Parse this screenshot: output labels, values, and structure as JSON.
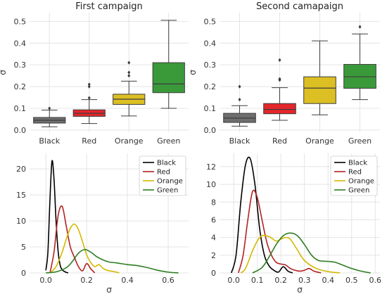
{
  "chart_data": [
    {
      "type": "box",
      "title": "First campaign",
      "ylabel": "σ",
      "xlabel": "",
      "ylim": [
        -0.01,
        0.54
      ],
      "yticks": [
        0.0,
        0.1,
        0.2,
        0.3,
        0.4,
        0.5
      ],
      "ytick_labels": [
        "0.0",
        "0.1",
        "0.2",
        "0.3",
        "0.4",
        "0.5"
      ],
      "grid": true,
      "categories": [
        "Black",
        "Red",
        "Orange",
        "Green"
      ],
      "colors": [
        "#6e6e6e",
        "#e3262b",
        "#dcbf22",
        "#3a9a3a"
      ],
      "boxes": [
        {
          "category": "Black",
          "whisker_low": 0.015,
          "q1": 0.032,
          "median": 0.045,
          "q3": 0.058,
          "whisker_high": 0.092,
          "outliers": [
            0.1
          ]
        },
        {
          "category": "Red",
          "whisker_low": 0.03,
          "q1": 0.063,
          "median": 0.077,
          "q3": 0.093,
          "whisker_high": 0.14,
          "outliers": [
            0.148,
            0.2,
            0.21
          ]
        },
        {
          "category": "Orange",
          "whisker_low": 0.065,
          "q1": 0.118,
          "median": 0.142,
          "q3": 0.165,
          "whisker_high": 0.225,
          "outliers": [
            0.25,
            0.265,
            0.31
          ]
        },
        {
          "category": "Green",
          "whisker_low": 0.1,
          "q1": 0.172,
          "median": 0.212,
          "q3": 0.31,
          "whisker_high": 0.505,
          "outliers": []
        }
      ]
    },
    {
      "type": "box",
      "title": "Second camapaign",
      "ylabel": "σ",
      "xlabel": "",
      "ylim": [
        -0.01,
        0.54
      ],
      "yticks": [
        0.0,
        0.1,
        0.2,
        0.3,
        0.4,
        0.5
      ],
      "ytick_labels": [
        "0.0",
        "0.1",
        "0.2",
        "0.3",
        "0.4",
        "0.5"
      ],
      "grid": true,
      "categories": [
        "Black",
        "Red",
        "Orange",
        "Green"
      ],
      "colors": [
        "#6e6e6e",
        "#e3262b",
        "#dcbf22",
        "#3a9a3a"
      ],
      "boxes": [
        {
          "category": "Black",
          "whisker_low": 0.018,
          "q1": 0.035,
          "median": 0.055,
          "q3": 0.077,
          "whisker_high": 0.112,
          "outliers": [
            0.14,
            0.2
          ]
        },
        {
          "category": "Red",
          "whisker_low": 0.045,
          "q1": 0.075,
          "median": 0.095,
          "q3": 0.122,
          "whisker_high": 0.195,
          "outliers": [
            0.23,
            0.235,
            0.322
          ]
        },
        {
          "category": "Orange",
          "whisker_low": 0.07,
          "q1": 0.122,
          "median": 0.193,
          "q3": 0.245,
          "whisker_high": 0.41,
          "outliers": []
        },
        {
          "category": "Green",
          "whisker_low": 0.14,
          "q1": 0.192,
          "median": 0.245,
          "q3": 0.302,
          "whisker_high": 0.442,
          "outliers": [
            0.475
          ]
        }
      ]
    },
    {
      "type": "line",
      "title": "",
      "xlabel": "σ",
      "ylabel": "",
      "xlim": [
        -0.08,
        0.7
      ],
      "ylim": [
        0,
        23
      ],
      "xticks": [
        0.0,
        0.2,
        0.4,
        0.6
      ],
      "xtick_labels": [
        "0.0",
        "0.2",
        "0.4",
        "0.6"
      ],
      "yticks": [
        0,
        5,
        10,
        15,
        20
      ],
      "ytick_labels": [
        "0",
        "5",
        "10",
        "15",
        "20"
      ],
      "grid": true,
      "legend": "top-right",
      "series": [
        {
          "name": "Black",
          "color": "#000000",
          "x": [
            0.0,
            0.01,
            0.02,
            0.03,
            0.04,
            0.05,
            0.06,
            0.07,
            0.08,
            0.09,
            0.1,
            0.11
          ],
          "y": [
            0.5,
            4,
            14,
            21.5,
            18,
            10,
            4.2,
            1.5,
            0.6,
            0.3,
            0.1,
            0
          ]
        },
        {
          "name": "Red",
          "color": "#b22222",
          "x": [
            0.02,
            0.04,
            0.06,
            0.08,
            0.1,
            0.12,
            0.14,
            0.16,
            0.18,
            0.2,
            0.22,
            0.24
          ],
          "y": [
            0,
            4,
            11,
            12.8,
            9,
            5,
            3,
            1.2,
            0.4,
            1.8,
            0.8,
            0
          ]
        },
        {
          "name": "Orange",
          "color": "#d4b800",
          "x": [
            0.02,
            0.05,
            0.08,
            0.1,
            0.12,
            0.14,
            0.16,
            0.18,
            0.2,
            0.22,
            0.24,
            0.26,
            0.28,
            0.3,
            0.34,
            0.36
          ],
          "y": [
            0,
            1.2,
            4,
            6.5,
            8.6,
            9.4,
            8.3,
            6,
            3.5,
            2,
            1.2,
            1.6,
            0.9,
            0.5,
            0.2,
            0
          ]
        },
        {
          "name": "Green",
          "color": "#2e7d22",
          "x": [
            0.0,
            0.05,
            0.1,
            0.13,
            0.16,
            0.19,
            0.22,
            0.25,
            0.28,
            0.31,
            0.35,
            0.4,
            0.45,
            0.5,
            0.55,
            0.6,
            0.65
          ],
          "y": [
            0,
            0.2,
            1,
            2.2,
            3.8,
            4.5,
            4,
            3.1,
            2.5,
            2.1,
            1.9,
            1.6,
            1.4,
            1.0,
            0.5,
            0.15,
            0
          ]
        }
      ]
    },
    {
      "type": "line",
      "title": "",
      "xlabel": "σ",
      "ylabel": "",
      "xlim": [
        -0.06,
        0.62
      ],
      "ylim": [
        0,
        13.5
      ],
      "xticks": [
        0.0,
        0.1,
        0.2,
        0.3,
        0.4,
        0.5,
        0.6
      ],
      "xtick_labels": [
        "0.0",
        "0.1",
        "0.2",
        "0.3",
        "0.4",
        "0.5",
        "0.6"
      ],
      "yticks": [
        0,
        2,
        4,
        6,
        8,
        10,
        12
      ],
      "ytick_labels": [
        "0",
        "2",
        "4",
        "6",
        "8",
        "10",
        "12"
      ],
      "grid": true,
      "legend": "top-right",
      "series": [
        {
          "name": "Black",
          "color": "#000000",
          "x": [
            -0.01,
            0.01,
            0.03,
            0.05,
            0.07,
            0.09,
            0.11,
            0.13,
            0.15,
            0.17,
            0.19,
            0.21,
            0.23,
            0.25
          ],
          "y": [
            0,
            2,
            8,
            12.2,
            12.9,
            10,
            5,
            2,
            0.8,
            0.3,
            0.1,
            0.7,
            0.2,
            0
          ]
        },
        {
          "name": "Red",
          "color": "#b22222",
          "x": [
            0.02,
            0.04,
            0.06,
            0.08,
            0.1,
            0.12,
            0.14,
            0.16,
            0.18,
            0.2,
            0.22,
            0.24,
            0.26,
            0.28,
            0.3,
            0.32,
            0.34,
            0.37
          ],
          "y": [
            0,
            2,
            6,
            9.2,
            8.5,
            6,
            3.5,
            2,
            1.2,
            1.0,
            0.9,
            0.5,
            0.3,
            0.2,
            0.3,
            0.5,
            0.2,
            0
          ]
        },
        {
          "name": "Orange",
          "color": "#d4b800",
          "x": [
            0.03,
            0.05,
            0.08,
            0.1,
            0.12,
            0.15,
            0.18,
            0.2,
            0.22,
            0.24,
            0.27,
            0.3,
            0.35,
            0.4,
            0.45
          ],
          "y": [
            0,
            0.5,
            2.5,
            3.6,
            4.2,
            4.1,
            3.6,
            3.8,
            4.0,
            3.8,
            2.6,
            1.4,
            0.5,
            0.15,
            0
          ]
        },
        {
          "name": "Green",
          "color": "#2e7d22",
          "x": [
            0.08,
            0.12,
            0.15,
            0.18,
            0.21,
            0.24,
            0.27,
            0.3,
            0.33,
            0.36,
            0.4,
            0.43,
            0.46,
            0.5,
            0.54,
            0.58
          ],
          "y": [
            0,
            0.6,
            1.8,
            3.2,
            4.2,
            4.5,
            4.2,
            3.2,
            2.0,
            1.4,
            1.3,
            1.2,
            0.9,
            0.5,
            0.2,
            0
          ]
        }
      ]
    }
  ]
}
